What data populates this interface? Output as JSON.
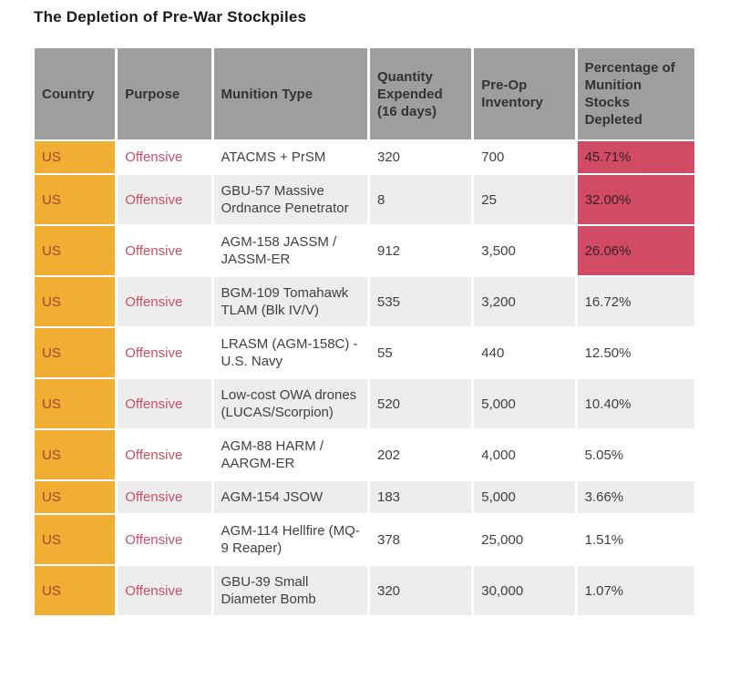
{
  "title": "The Depletion of Pre-War Stockpiles",
  "chart_data": {
    "type": "table",
    "title": "The Depletion of Pre-War Stockpiles",
    "columns": [
      "Country",
      "Purpose",
      "Munition Type",
      "Quantity Expended (16 days)",
      "Pre-Op Inventory",
      "Percentage of Munition Stocks Depleted"
    ],
    "rows": [
      {
        "country": "US",
        "purpose": "Offensive",
        "munition_type": "ATACMS + PrSM",
        "quantity_expended": "320",
        "pre_op_inventory": "700",
        "percent_depleted": "45.71%",
        "highlighted": true
      },
      {
        "country": "US",
        "purpose": "Offensive",
        "munition_type": "GBU-57 Massive Ordnance Penetrator",
        "quantity_expended": "8",
        "pre_op_inventory": "25",
        "percent_depleted": "32.00%",
        "highlighted": true
      },
      {
        "country": "US",
        "purpose": "Offensive",
        "munition_type": "AGM-158 JASSM / JASSM-ER",
        "quantity_expended": "912",
        "pre_op_inventory": "3,500",
        "percent_depleted": "26.06%",
        "highlighted": true
      },
      {
        "country": "US",
        "purpose": "Offensive",
        "munition_type": "BGM-109 Tomahawk TLAM (Blk IV/V)",
        "quantity_expended": "535",
        "pre_op_inventory": "3,200",
        "percent_depleted": "16.72%",
        "highlighted": false
      },
      {
        "country": "US",
        "purpose": "Offensive",
        "munition_type": "LRASM (AGM-158C) - U.S. Navy",
        "quantity_expended": "55",
        "pre_op_inventory": "440",
        "percent_depleted": "12.50%",
        "highlighted": false
      },
      {
        "country": "US",
        "purpose": "Offensive",
        "munition_type": "Low-cost OWA drones (LUCAS/Scorpion)",
        "quantity_expended": "520",
        "pre_op_inventory": "5,000",
        "percent_depleted": "10.40%",
        "highlighted": false
      },
      {
        "country": "US",
        "purpose": "Offensive",
        "munition_type": "AGM-88 HARM / AARGM-ER",
        "quantity_expended": "202",
        "pre_op_inventory": "4,000",
        "percent_depleted": "5.05%",
        "highlighted": false
      },
      {
        "country": "US",
        "purpose": "Offensive",
        "munition_type": "AGM-154 JSOW",
        "quantity_expended": "183",
        "pre_op_inventory": "5,000",
        "percent_depleted": "3.66%",
        "highlighted": false
      },
      {
        "country": "US",
        "purpose": "Offensive",
        "munition_type": "AGM-114 Hellfire (MQ-9 Reaper)",
        "quantity_expended": "378",
        "pre_op_inventory": "25,000",
        "percent_depleted": "1.51%",
        "highlighted": false
      },
      {
        "country": "US",
        "purpose": "Offensive",
        "munition_type": "GBU-39 Small Diameter Bomb",
        "quantity_expended": "320",
        "pre_op_inventory": "30,000",
        "percent_depleted": "1.07%",
        "highlighted": false
      }
    ]
  },
  "colors": {
    "header_bg": "#9e9e9e",
    "header_text": "#333333",
    "stripe_bg": "#ededed",
    "row_bg": "#ffffff",
    "country_bg": "#f0ae33",
    "country_text": "#a8432f",
    "purpose_text": "#c94f66",
    "highlight_bg": "#d04b63",
    "highlight_text": "#3b2127",
    "body_text": "#404040",
    "title_text": "#1a1a1a"
  }
}
